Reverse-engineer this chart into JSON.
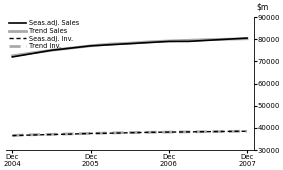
{
  "title": "",
  "ylim": [
    30000,
    90000
  ],
  "yticks": [
    30000,
    40000,
    50000,
    60000,
    70000,
    80000,
    90000
  ],
  "x_labels": [
    "Dec\n2004",
    "Dec\n2005",
    "Dec\n2006",
    "Dec\n2007"
  ],
  "x_positions": [
    0,
    12,
    24,
    36
  ],
  "seas_adj_sales": [
    72000,
    73500,
    75000,
    76000,
    77000,
    77500,
    78000,
    78500,
    79000,
    79000,
    79500,
    80000,
    80500
  ],
  "trend_sales": [
    72500,
    73800,
    75000,
    76000,
    77000,
    77800,
    78200,
    78800,
    79200,
    79500,
    79800,
    80000,
    80200
  ],
  "seas_adj_inv": [
    36500,
    36800,
    37000,
    37200,
    37500,
    37600,
    37800,
    38000,
    38100,
    38200,
    38300,
    38400,
    38500
  ],
  "trend_inv": [
    36600,
    36900,
    37100,
    37300,
    37500,
    37700,
    37900,
    38000,
    38100,
    38200,
    38300,
    38400,
    38500
  ],
  "x_data": [
    0,
    3,
    6,
    9,
    12,
    15,
    18,
    21,
    24,
    27,
    30,
    33,
    36
  ],
  "legend_items": [
    {
      "label": "Seas.adj. Sales",
      "color": "#000000",
      "linestyle": "solid",
      "linewidth": 1.2,
      "dashes": []
    },
    {
      "label": "Trend Sales",
      "color": "#aaaaaa",
      "linestyle": "solid",
      "linewidth": 2.0,
      "dashes": []
    },
    {
      "label": "Seas.adj. Inv.",
      "color": "#000000",
      "linestyle": "dashed",
      "linewidth": 1.0,
      "dashes": [
        3,
        2
      ]
    },
    {
      "label": "Trend Inv.",
      "color": "#aaaaaa",
      "linestyle": "dashed",
      "linewidth": 2.0,
      "dashes": [
        4,
        2
      ]
    }
  ],
  "bg_color": "#ffffff"
}
